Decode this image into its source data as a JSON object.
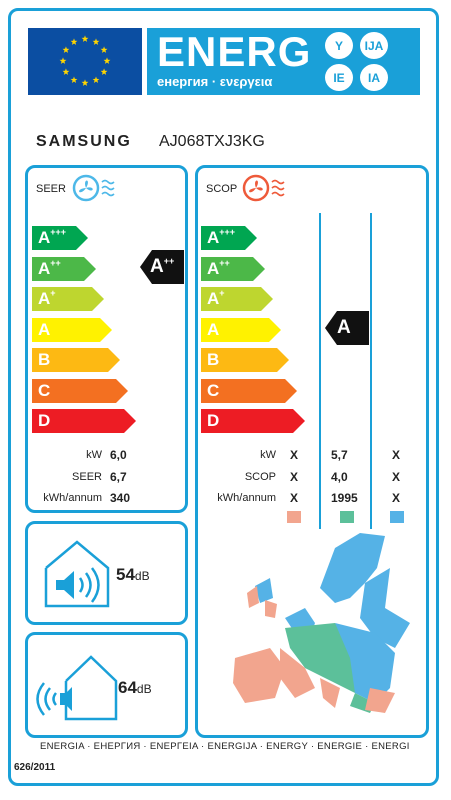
{
  "header": {
    "energy_word": "ENERG",
    "energy_sub": "енергия · ενεργεια",
    "lang_bubbles": [
      "Y",
      "IJA",
      "IE",
      "IA"
    ]
  },
  "supplier": {
    "brand": "SAMSUNG",
    "model": "AJ068TXJ3KG"
  },
  "seer": {
    "title": "SEER",
    "class_letters": [
      "A",
      "A",
      "A",
      "A",
      "B",
      "C",
      "D"
    ],
    "class_sups": [
      "+++",
      "++",
      "+",
      "",
      "",
      "",
      ""
    ],
    "rating_letter": "A",
    "rating_sup": "++",
    "stats": [
      {
        "label": "kW",
        "value": "6,0"
      },
      {
        "label": "SEER",
        "value": "6,7"
      },
      {
        "label": "kWh/annum",
        "value": "340"
      }
    ]
  },
  "scop": {
    "title": "SCOP",
    "class_letters": [
      "A",
      "A",
      "A",
      "A",
      "B",
      "C",
      "D"
    ],
    "class_sups": [
      "+++",
      "++",
      "+",
      "",
      "",
      "",
      ""
    ],
    "rating_letter": "A",
    "rating_sup": "",
    "stats": [
      {
        "label": "kW",
        "values": [
          "X",
          "5,7",
          "X"
        ]
      },
      {
        "label": "SCOP",
        "values": [
          "X",
          "4,0",
          "X"
        ]
      },
      {
        "label": "kWh/annum",
        "values": [
          "X",
          "1995",
          "X"
        ]
      }
    ],
    "zone_colors": [
      "#f2a58e",
      "#5cc09a",
      "#55b2e6"
    ]
  },
  "noise_indoor": {
    "value": "54",
    "unit": "dB"
  },
  "noise_outdoor": {
    "value": "64",
    "unit": "dB"
  },
  "colors": {
    "frame": "#1aa0d8",
    "eu_blue": "#0b4ea2",
    "eu_star": "#ffd500",
    "class_colors": [
      "#00a651",
      "#4cb848",
      "#bed62f",
      "#fff200",
      "#fdb913",
      "#f37021",
      "#ed1c24"
    ],
    "pointer": "#111111"
  },
  "footer": {
    "languages": "ENERGIA · ЕНЕРГИЯ · ΕΝΕΡΓΕΙΑ · ENERGIJA · ENERGY · ENERGIE · ENERGI",
    "regulation": "626/2011"
  }
}
